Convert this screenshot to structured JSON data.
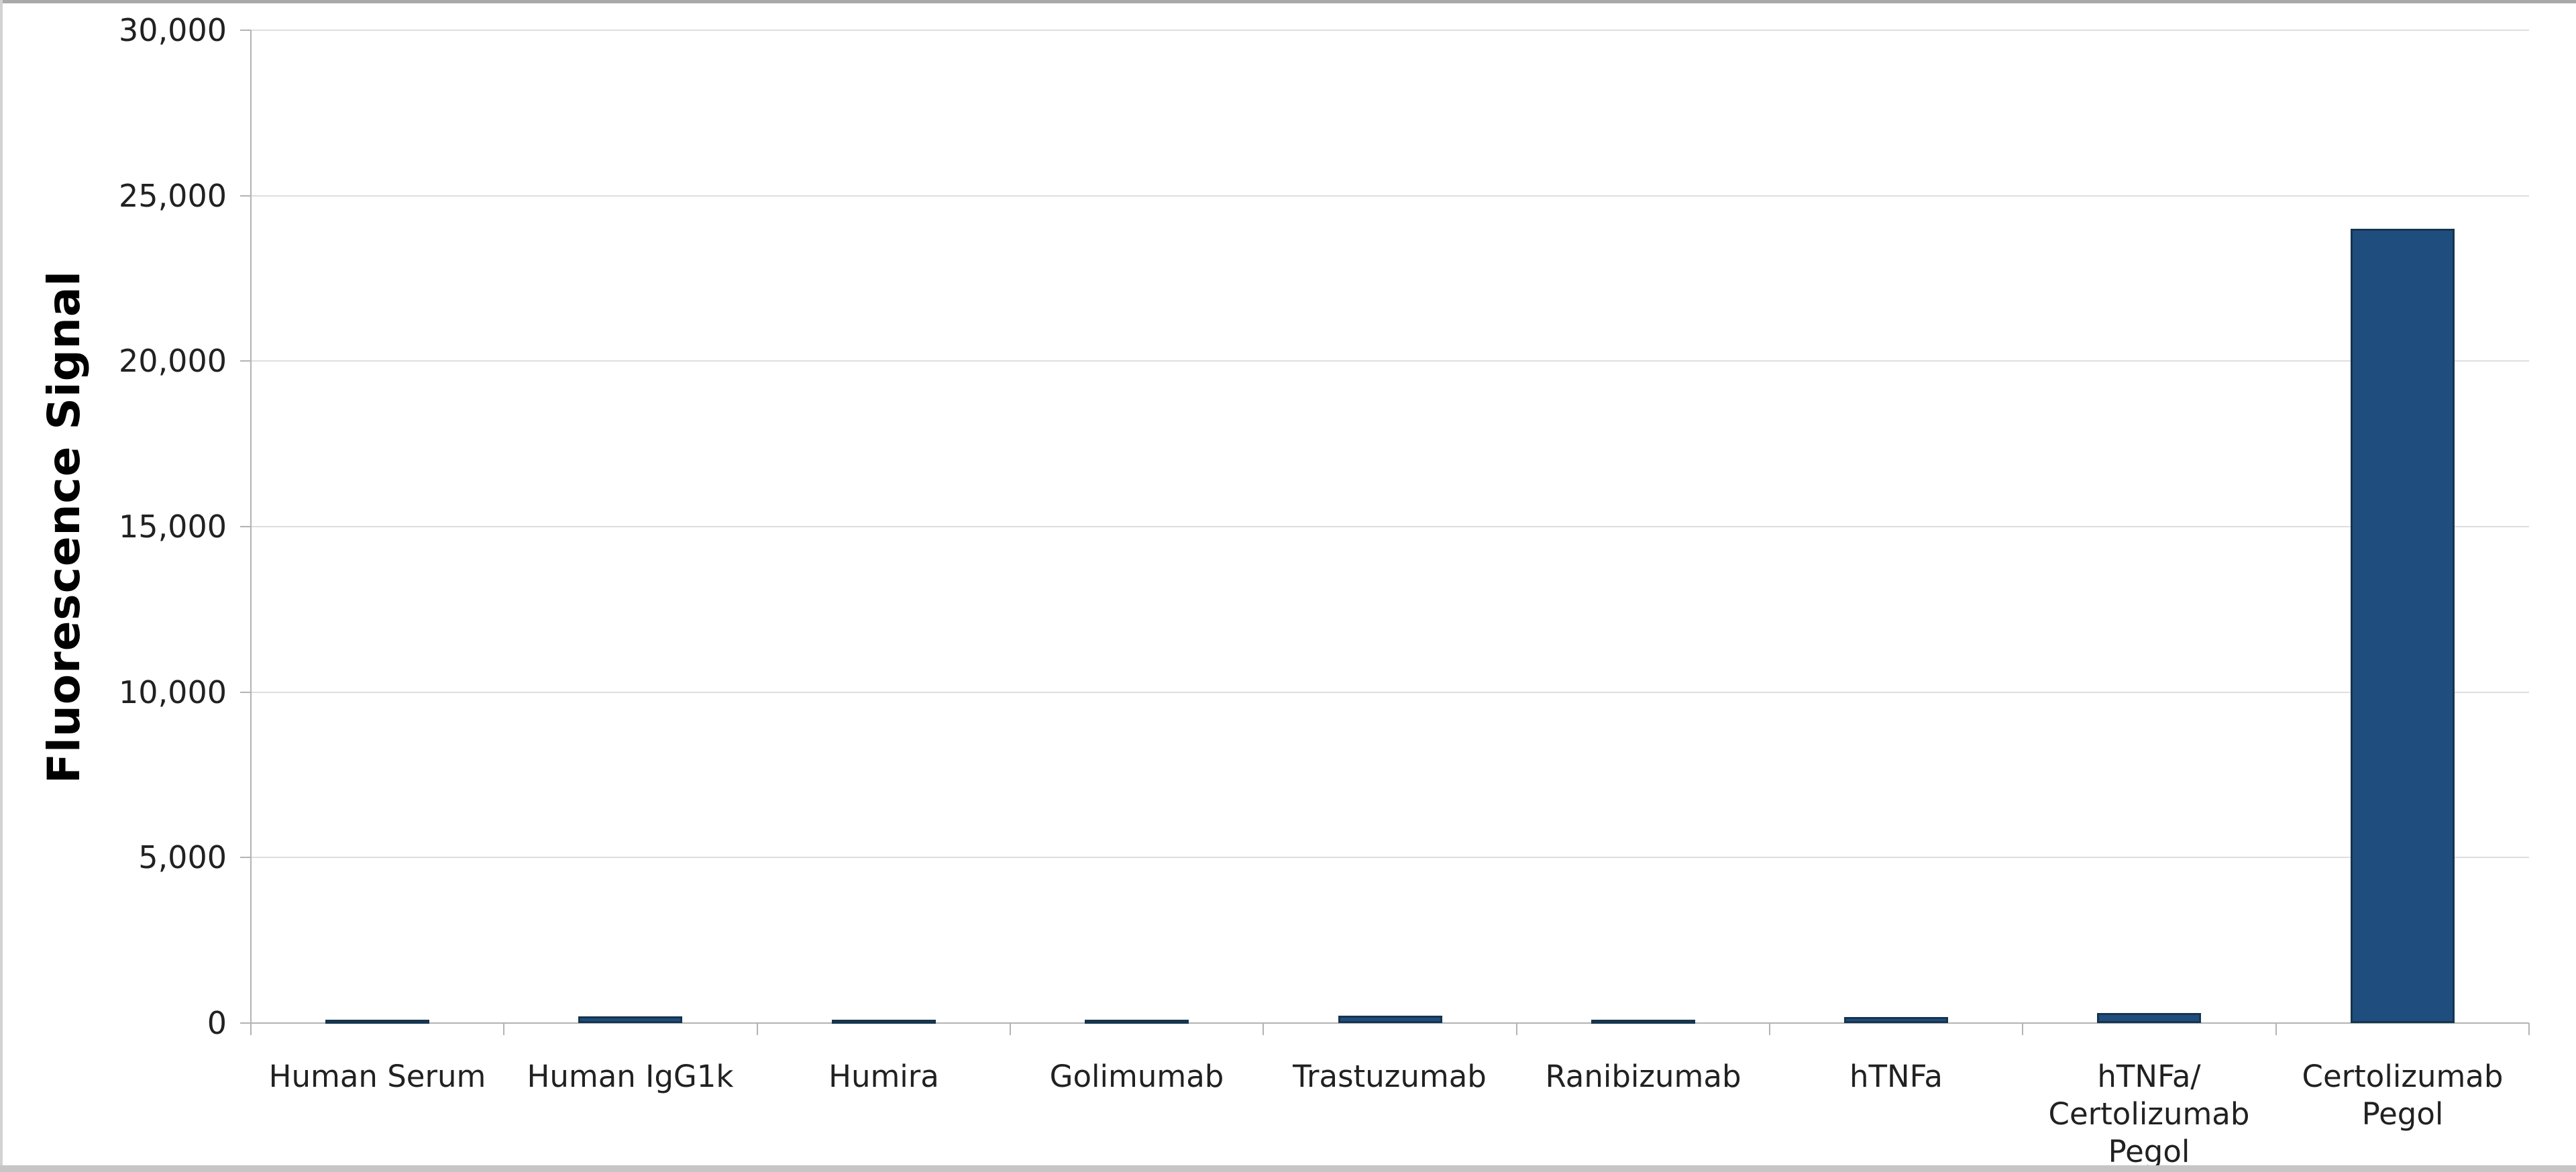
{
  "chart_data": {
    "type": "bar",
    "title": "",
    "xlabel": "",
    "ylabel": "Fluorescence Signal",
    "categories": [
      "Human Serum",
      "Human IgG1k",
      "Humira",
      "Golimumab",
      "Trastuzumab",
      "Ranibizumab",
      "hTNFa",
      "hTNFa/\nCertolizumab\nPegol",
      "Certolizumab\nPegol"
    ],
    "values": [
      100,
      200,
      40,
      60,
      220,
      75,
      180,
      300,
      24000
    ],
    "ylim": [
      0,
      30000
    ],
    "ytick_step": 5000,
    "ytick_labels": [
      "0",
      "5,000",
      "10,000",
      "15,000",
      "20,000",
      "25,000",
      "30,000"
    ],
    "grid": "horizontal",
    "legend": "none",
    "colors": {
      "bar_fill": "#1f4e7e",
      "bar_border": "#16354f",
      "gridline": "#dedede",
      "axis_line": "#b3b3b3",
      "tick_label": "#212121",
      "axis_title": "#000000",
      "edge_top": "#a9a9a9",
      "edge_left": "#d2d2d2",
      "edge_bottom": "#c6c6c6"
    }
  }
}
